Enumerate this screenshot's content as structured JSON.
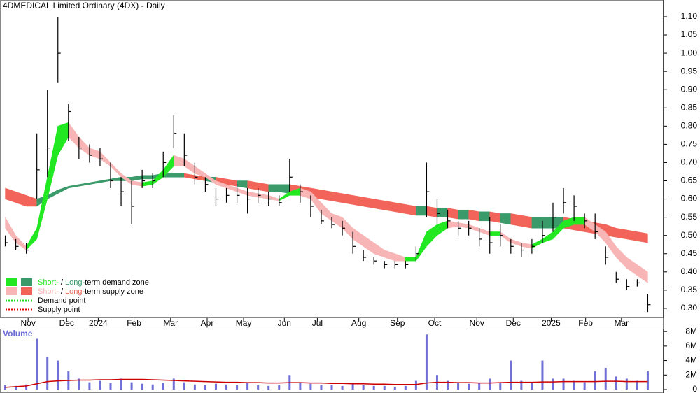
{
  "chart_data": [
    {
      "type": "ohlc",
      "title": "4DMEDICAL Limited Ordinary (4DX) - Daily",
      "color": "#000000",
      "high": [
        0.5,
        0.49,
        0.48,
        0.78,
        0.9,
        1.1,
        0.86,
        0.77,
        0.75,
        0.74,
        0.7,
        0.66,
        0.65,
        0.68,
        0.67,
        0.73,
        0.83,
        0.78,
        0.7,
        0.66,
        0.63,
        0.63,
        0.64,
        0.63,
        0.63,
        0.62,
        0.61,
        0.71,
        0.64,
        0.61,
        0.57,
        0.55,
        0.54,
        0.51,
        0.46,
        0.44,
        0.43,
        0.43,
        0.43,
        0.47,
        0.7,
        0.6,
        0.57,
        0.54,
        0.54,
        0.52,
        0.55,
        0.53,
        0.49,
        0.48,
        0.49,
        0.54,
        0.59,
        0.63,
        0.61,
        0.56,
        0.56,
        0.47,
        0.4,
        0.38,
        0.38,
        0.34
      ],
      "low": [
        0.47,
        0.46,
        0.45,
        0.6,
        0.66,
        0.92,
        0.76,
        0.71,
        0.7,
        0.69,
        0.63,
        0.58,
        0.53,
        0.63,
        0.63,
        0.66,
        0.74,
        0.69,
        0.64,
        0.62,
        0.58,
        0.59,
        0.59,
        0.56,
        0.59,
        0.58,
        0.58,
        0.62,
        0.59,
        0.55,
        0.53,
        0.52,
        0.5,
        0.45,
        0.43,
        0.42,
        0.41,
        0.41,
        0.41,
        0.43,
        0.55,
        0.53,
        0.52,
        0.5,
        0.5,
        0.47,
        0.45,
        0.47,
        0.45,
        0.44,
        0.45,
        0.48,
        0.51,
        0.56,
        0.54,
        0.52,
        0.49,
        0.42,
        0.37,
        0.35,
        0.36,
        0.29
      ],
      "close": [
        0.48,
        0.47,
        0.46,
        0.68,
        0.74,
        1.0,
        0.84,
        0.74,
        0.72,
        0.71,
        0.65,
        0.62,
        0.58,
        0.65,
        0.65,
        0.7,
        0.78,
        0.72,
        0.66,
        0.64,
        0.6,
        0.61,
        0.61,
        0.6,
        0.61,
        0.6,
        0.59,
        0.66,
        0.62,
        0.58,
        0.54,
        0.53,
        0.52,
        0.47,
        0.44,
        0.43,
        0.42,
        0.42,
        0.42,
        0.45,
        0.62,
        0.56,
        0.54,
        0.52,
        0.52,
        0.49,
        0.48,
        0.5,
        0.47,
        0.46,
        0.47,
        0.5,
        0.55,
        0.59,
        0.58,
        0.54,
        0.51,
        0.44,
        0.38,
        0.36,
        0.37,
        0.31
      ],
      "short_zone": {
        "rising_color": "#22e822",
        "falling_color": "#f7b5b5",
        "upper": [
          0.55,
          0.5,
          0.47,
          0.52,
          0.66,
          0.8,
          0.81,
          0.77,
          0.74,
          0.73,
          0.7,
          0.67,
          0.65,
          0.645,
          0.65,
          0.68,
          0.72,
          0.71,
          0.69,
          0.67,
          0.65,
          0.64,
          0.63,
          0.62,
          0.615,
          0.61,
          0.6,
          0.62,
          0.63,
          0.62,
          0.59,
          0.56,
          0.55,
          0.52,
          0.5,
          0.48,
          0.46,
          0.45,
          0.44,
          0.44,
          0.51,
          0.53,
          0.54,
          0.535,
          0.53,
          0.52,
          0.51,
          0.51,
          0.49,
          0.48,
          0.475,
          0.49,
          0.51,
          0.54,
          0.55,
          0.55,
          0.53,
          0.51,
          0.47,
          0.44,
          0.42,
          0.4
        ],
        "lower": [
          0.52,
          0.48,
          0.46,
          0.49,
          0.6,
          0.72,
          0.77,
          0.74,
          0.72,
          0.71,
          0.69,
          0.66,
          0.64,
          0.635,
          0.64,
          0.66,
          0.69,
          0.69,
          0.67,
          0.66,
          0.64,
          0.63,
          0.62,
          0.61,
          0.605,
          0.6,
          0.595,
          0.61,
          0.61,
          0.6,
          0.56,
          0.54,
          0.52,
          0.49,
          0.47,
          0.45,
          0.44,
          0.43,
          0.43,
          0.43,
          0.47,
          0.5,
          0.52,
          0.525,
          0.52,
          0.51,
          0.5,
          0.5,
          0.48,
          0.47,
          0.465,
          0.48,
          0.49,
          0.52,
          0.53,
          0.53,
          0.51,
          0.48,
          0.44,
          0.41,
          0.39,
          0.37
        ]
      },
      "long_zone": {
        "rising_color": "#3a9a6a",
        "falling_color": "#f2645a",
        "upper": [
          0.63,
          0.62,
          0.61,
          0.6,
          0.61,
          0.625,
          0.635,
          0.64,
          0.645,
          0.65,
          0.655,
          0.66,
          0.66,
          0.665,
          0.665,
          0.67,
          0.67,
          0.67,
          0.665,
          0.66,
          0.66,
          0.655,
          0.65,
          0.65,
          0.645,
          0.64,
          0.64,
          0.64,
          0.635,
          0.63,
          0.625,
          0.62,
          0.615,
          0.61,
          0.605,
          0.6,
          0.595,
          0.59,
          0.585,
          0.58,
          0.58,
          0.575,
          0.575,
          0.57,
          0.57,
          0.565,
          0.565,
          0.56,
          0.56,
          0.555,
          0.55,
          0.55,
          0.55,
          0.55,
          0.545,
          0.54,
          0.535,
          0.53,
          0.52,
          0.515,
          0.51,
          0.505
        ],
        "lower": [
          0.6,
          0.59,
          0.58,
          0.58,
          0.6,
          0.615,
          0.63,
          0.635,
          0.64,
          0.645,
          0.65,
          0.65,
          0.65,
          0.655,
          0.655,
          0.66,
          0.66,
          0.66,
          0.655,
          0.65,
          0.645,
          0.64,
          0.635,
          0.63,
          0.625,
          0.62,
          0.62,
          0.615,
          0.61,
          0.605,
          0.6,
          0.595,
          0.59,
          0.585,
          0.58,
          0.575,
          0.57,
          0.565,
          0.56,
          0.555,
          0.555,
          0.55,
          0.55,
          0.545,
          0.545,
          0.54,
          0.54,
          0.535,
          0.53,
          0.525,
          0.52,
          0.52,
          0.52,
          0.52,
          0.515,
          0.51,
          0.505,
          0.5,
          0.495,
          0.49,
          0.485,
          0.48
        ]
      },
      "xlim": [
        0,
        63
      ],
      "xticks": [
        {
          "value": 2.67,
          "label": "Nov"
        },
        {
          "value": 6.33,
          "label": "Dec"
        },
        {
          "value": 9.33,
          "label": "2024"
        },
        {
          "value": 12.73,
          "label": "Feb"
        },
        {
          "value": 16.2,
          "label": "Mar"
        },
        {
          "value": 19.67,
          "label": "Apr"
        },
        {
          "value": 23.13,
          "label": "May"
        },
        {
          "value": 27,
          "label": "Jun"
        },
        {
          "value": 30.13,
          "label": "Jul"
        },
        {
          "value": 34.07,
          "label": "Aug"
        },
        {
          "value": 37.73,
          "label": "Sep"
        },
        {
          "value": 41.27,
          "label": "Oct"
        },
        {
          "value": 45.27,
          "label": "Nov"
        },
        {
          "value": 48.73,
          "label": "Dec"
        },
        {
          "value": 52.33,
          "label": "2025"
        },
        {
          "value": 55.6,
          "label": "Feb"
        },
        {
          "value": 59,
          "label": "Mar"
        }
      ],
      "ylim": [
        0.273,
        1.146
      ],
      "yticks": [
        {
          "value": 0.3,
          "label": "0.30"
        },
        {
          "value": 0.35,
          "label": "0.35"
        },
        {
          "value": 0.4,
          "label": "0.40"
        },
        {
          "value": 0.45,
          "label": "0.45"
        },
        {
          "value": 0.5,
          "label": "0.50"
        },
        {
          "value": 0.55,
          "label": "0.55"
        },
        {
          "value": 0.6,
          "label": "0.60"
        },
        {
          "value": 0.65,
          "label": "0.65"
        },
        {
          "value": 0.7,
          "label": "0.70"
        },
        {
          "value": 0.75,
          "label": "0.75"
        },
        {
          "value": 0.8,
          "label": "0.80"
        },
        {
          "value": 0.85,
          "label": "0.85"
        },
        {
          "value": 0.9,
          "label": "0.90"
        },
        {
          "value": 0.95,
          "label": "0.95"
        },
        {
          "value": 1.0,
          "label": "1.00"
        },
        {
          "value": 1.05,
          "label": "1.05"
        },
        {
          "value": 1.1,
          "label": "1.10"
        }
      ],
      "legend": {
        "position": "lower left",
        "demand": [
          "Short-",
          "/",
          "Long-",
          "term demand zone"
        ],
        "supply": [
          "Short-",
          "/",
          "Long-",
          "term supply zone"
        ],
        "demand_point": "Demand point",
        "demand_point_color": "#22dd22",
        "supply_point": "Supply point",
        "supply_point_color": "#dd0000"
      }
    },
    {
      "type": "volume",
      "label": "Volume",
      "color": "#7070d8",
      "average_color": "#cc0000",
      "values": [
        600000,
        500000,
        700000,
        7000000,
        4500000,
        4000000,
        2500000,
        1500000,
        1000000,
        1200000,
        900000,
        1500000,
        1000000,
        800000,
        700000,
        900000,
        1500000,
        1000000,
        700000,
        600000,
        800000,
        700000,
        600000,
        900000,
        600000,
        500000,
        600000,
        2000000,
        1000000,
        800000,
        600000,
        600000,
        500000,
        800000,
        600000,
        500000,
        500000,
        400000,
        500000,
        1200000,
        7600000,
        2000000,
        1200000,
        900000,
        800000,
        900000,
        1500000,
        1000000,
        4000000,
        1200000,
        1000000,
        4000000,
        1500000,
        1500000,
        1200000,
        1000000,
        2500000,
        3000000,
        1800000,
        1500000,
        1200000,
        2500000
      ],
      "average": [
        300000,
        400000,
        500000,
        800000,
        1100000,
        1200000,
        1250000,
        1300000,
        1300000,
        1350000,
        1350000,
        1400000,
        1400000,
        1400000,
        1350000,
        1300000,
        1250000,
        1200000,
        1150000,
        1100000,
        1050000,
        1000000,
        1000000,
        950000,
        950000,
        900000,
        900000,
        950000,
        950000,
        900000,
        900000,
        850000,
        850000,
        800000,
        800000,
        750000,
        750000,
        700000,
        700000,
        700000,
        900000,
        1000000,
        1000000,
        950000,
        950000,
        900000,
        900000,
        950000,
        1000000,
        1000000,
        1000000,
        1050000,
        1050000,
        1100000,
        1100000,
        1100000,
        1100000,
        1150000,
        1150000,
        1100000,
        1100000,
        1100000
      ],
      "xlim": [
        0,
        63
      ],
      "ylim": [
        0,
        8400000
      ],
      "yticks": [
        0,
        {
          "value": 2000000,
          "label": "2M"
        },
        {
          "value": 4000000,
          "label": "4M"
        },
        {
          "value": 6000000,
          "label": "6M"
        },
        {
          "value": 8000000,
          "label": "8M"
        }
      ]
    }
  ]
}
